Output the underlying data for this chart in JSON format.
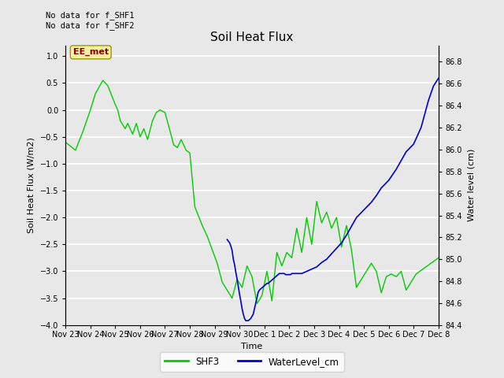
{
  "title": "Soil Heat Flux",
  "ylabel_left": "Soil Heat Flux (W/m2)",
  "ylabel_right": "Water level (cm)",
  "xlabel": "Time",
  "annotation_text": "No data for f_SHF1\nNo data for f_SHF2",
  "ee_met_label": "EE_met",
  "ylim_left": [
    -4.0,
    1.2
  ],
  "ylim_right": [
    84.4,
    86.95
  ],
  "bg_color": "#e8e8e8",
  "shf3_color": "#00cc00",
  "water_color": "#0000cc",
  "legend_shf3": "SHF3",
  "legend_water": "WaterLevel_cm",
  "xtick_labels": [
    "Nov 23",
    "Nov 24",
    "Nov 25",
    "Nov 26",
    "Nov 27",
    "Nov 28",
    "Nov 29",
    "Nov 30",
    "Dec 1",
    "Dec 2",
    "Dec 3",
    "Dec 4",
    "Dec 5",
    "Dec 6",
    "Dec 7",
    "Dec 8"
  ],
  "yticks_left": [
    -4.0,
    -3.5,
    -3.0,
    -2.5,
    -2.0,
    -1.5,
    -1.0,
    -0.5,
    0.0,
    0.5,
    1.0
  ],
  "yticks_right": [
    84.4,
    84.6,
    84.8,
    85.0,
    85.2,
    85.4,
    85.6,
    85.8,
    86.0,
    86.2,
    86.4,
    86.6,
    86.8
  ],
  "shf3_x": [
    0.0,
    0.4,
    0.7,
    1.0,
    1.2,
    1.5,
    1.7,
    2.0,
    2.1,
    2.2,
    2.4,
    2.5,
    2.7,
    2.85,
    3.0,
    3.15,
    3.3,
    3.5,
    3.65,
    3.8,
    4.0,
    4.15,
    4.35,
    4.5,
    4.65,
    4.85,
    5.0,
    5.2,
    5.5,
    5.7,
    5.9,
    6.1,
    6.3,
    6.5,
    6.7,
    6.9,
    7.1,
    7.3,
    7.5,
    7.7,
    7.9,
    8.1,
    8.3,
    8.5,
    8.7,
    8.9,
    9.1,
    9.3,
    9.5,
    9.7,
    9.9,
    10.1,
    10.3,
    10.5,
    10.7,
    10.9,
    11.1,
    11.3,
    11.5,
    11.7,
    11.9,
    12.1,
    12.3,
    12.5,
    12.7,
    12.9,
    13.1,
    13.3,
    13.5,
    13.7,
    13.9,
    14.1,
    14.4,
    14.7,
    15.0
  ],
  "shf3_y": [
    -0.6,
    -0.75,
    -0.4,
    0.0,
    0.3,
    0.55,
    0.45,
    0.1,
    0.0,
    -0.2,
    -0.35,
    -0.25,
    -0.45,
    -0.25,
    -0.5,
    -0.35,
    -0.55,
    -0.2,
    -0.05,
    0.0,
    -0.05,
    -0.3,
    -0.65,
    -0.7,
    -0.55,
    -0.75,
    -0.8,
    -1.8,
    -2.15,
    -2.35,
    -2.6,
    -2.85,
    -3.2,
    -3.35,
    -3.5,
    -3.15,
    -3.3,
    -2.9,
    -3.1,
    -3.6,
    -3.45,
    -3.0,
    -3.55,
    -2.65,
    -2.9,
    -2.65,
    -2.75,
    -2.2,
    -2.65,
    -2.0,
    -2.5,
    -1.7,
    -2.1,
    -1.9,
    -2.2,
    -2.0,
    -2.55,
    -2.15,
    -2.6,
    -3.3,
    -3.15,
    -3.0,
    -2.85,
    -3.0,
    -3.4,
    -3.1,
    -3.05,
    -3.1,
    -3.0,
    -3.35,
    -3.2,
    -3.05,
    -2.95,
    -2.85,
    -2.75
  ],
  "water_x": [
    6.5,
    6.6,
    6.65,
    6.7,
    6.75,
    6.8,
    6.85,
    6.9,
    6.95,
    7.0,
    7.05,
    7.1,
    7.15,
    7.2,
    7.25,
    7.3,
    7.35,
    7.4,
    7.45,
    7.5,
    7.55,
    7.6,
    7.65,
    7.7,
    7.75,
    7.8,
    7.85,
    7.9,
    7.95,
    8.0,
    8.05,
    8.1,
    8.15,
    8.2,
    8.25,
    8.3,
    8.35,
    8.4,
    8.45,
    8.5,
    8.55,
    8.6,
    8.65,
    8.7,
    8.75,
    8.8,
    8.85,
    8.9,
    8.95,
    9.0,
    9.05,
    9.1,
    9.15,
    9.2,
    9.25,
    9.3,
    9.35,
    9.4,
    9.45,
    9.5,
    9.6,
    9.7,
    9.8,
    9.9,
    10.0,
    10.1,
    10.2,
    10.3,
    10.5,
    10.7,
    10.9,
    11.1,
    11.3,
    11.5,
    11.7,
    12.0,
    12.3,
    12.5,
    12.7,
    13.0,
    13.3,
    13.5,
    13.7,
    14.0,
    14.3,
    14.6,
    14.8,
    15.0
  ],
  "water_y": [
    85.18,
    85.15,
    85.12,
    85.08,
    85.0,
    84.95,
    84.88,
    84.82,
    84.75,
    84.68,
    84.62,
    84.55,
    84.5,
    84.46,
    84.44,
    84.44,
    84.44,
    84.45,
    84.46,
    84.48,
    84.5,
    84.55,
    84.6,
    84.65,
    84.7,
    84.72,
    84.73,
    84.74,
    84.75,
    84.76,
    84.77,
    84.78,
    84.78,
    84.79,
    84.8,
    84.81,
    84.82,
    84.83,
    84.84,
    84.85,
    84.86,
    84.87,
    84.87,
    84.87,
    84.87,
    84.87,
    84.86,
    84.86,
    84.86,
    84.86,
    84.86,
    84.87,
    84.87,
    84.87,
    84.87,
    84.87,
    84.87,
    84.87,
    84.87,
    84.87,
    84.88,
    84.89,
    84.9,
    84.91,
    84.92,
    84.93,
    84.95,
    84.97,
    85.0,
    85.05,
    85.1,
    85.15,
    85.22,
    85.3,
    85.38,
    85.45,
    85.52,
    85.58,
    85.65,
    85.72,
    85.82,
    85.9,
    85.98,
    86.05,
    86.2,
    86.45,
    86.58,
    86.65
  ]
}
